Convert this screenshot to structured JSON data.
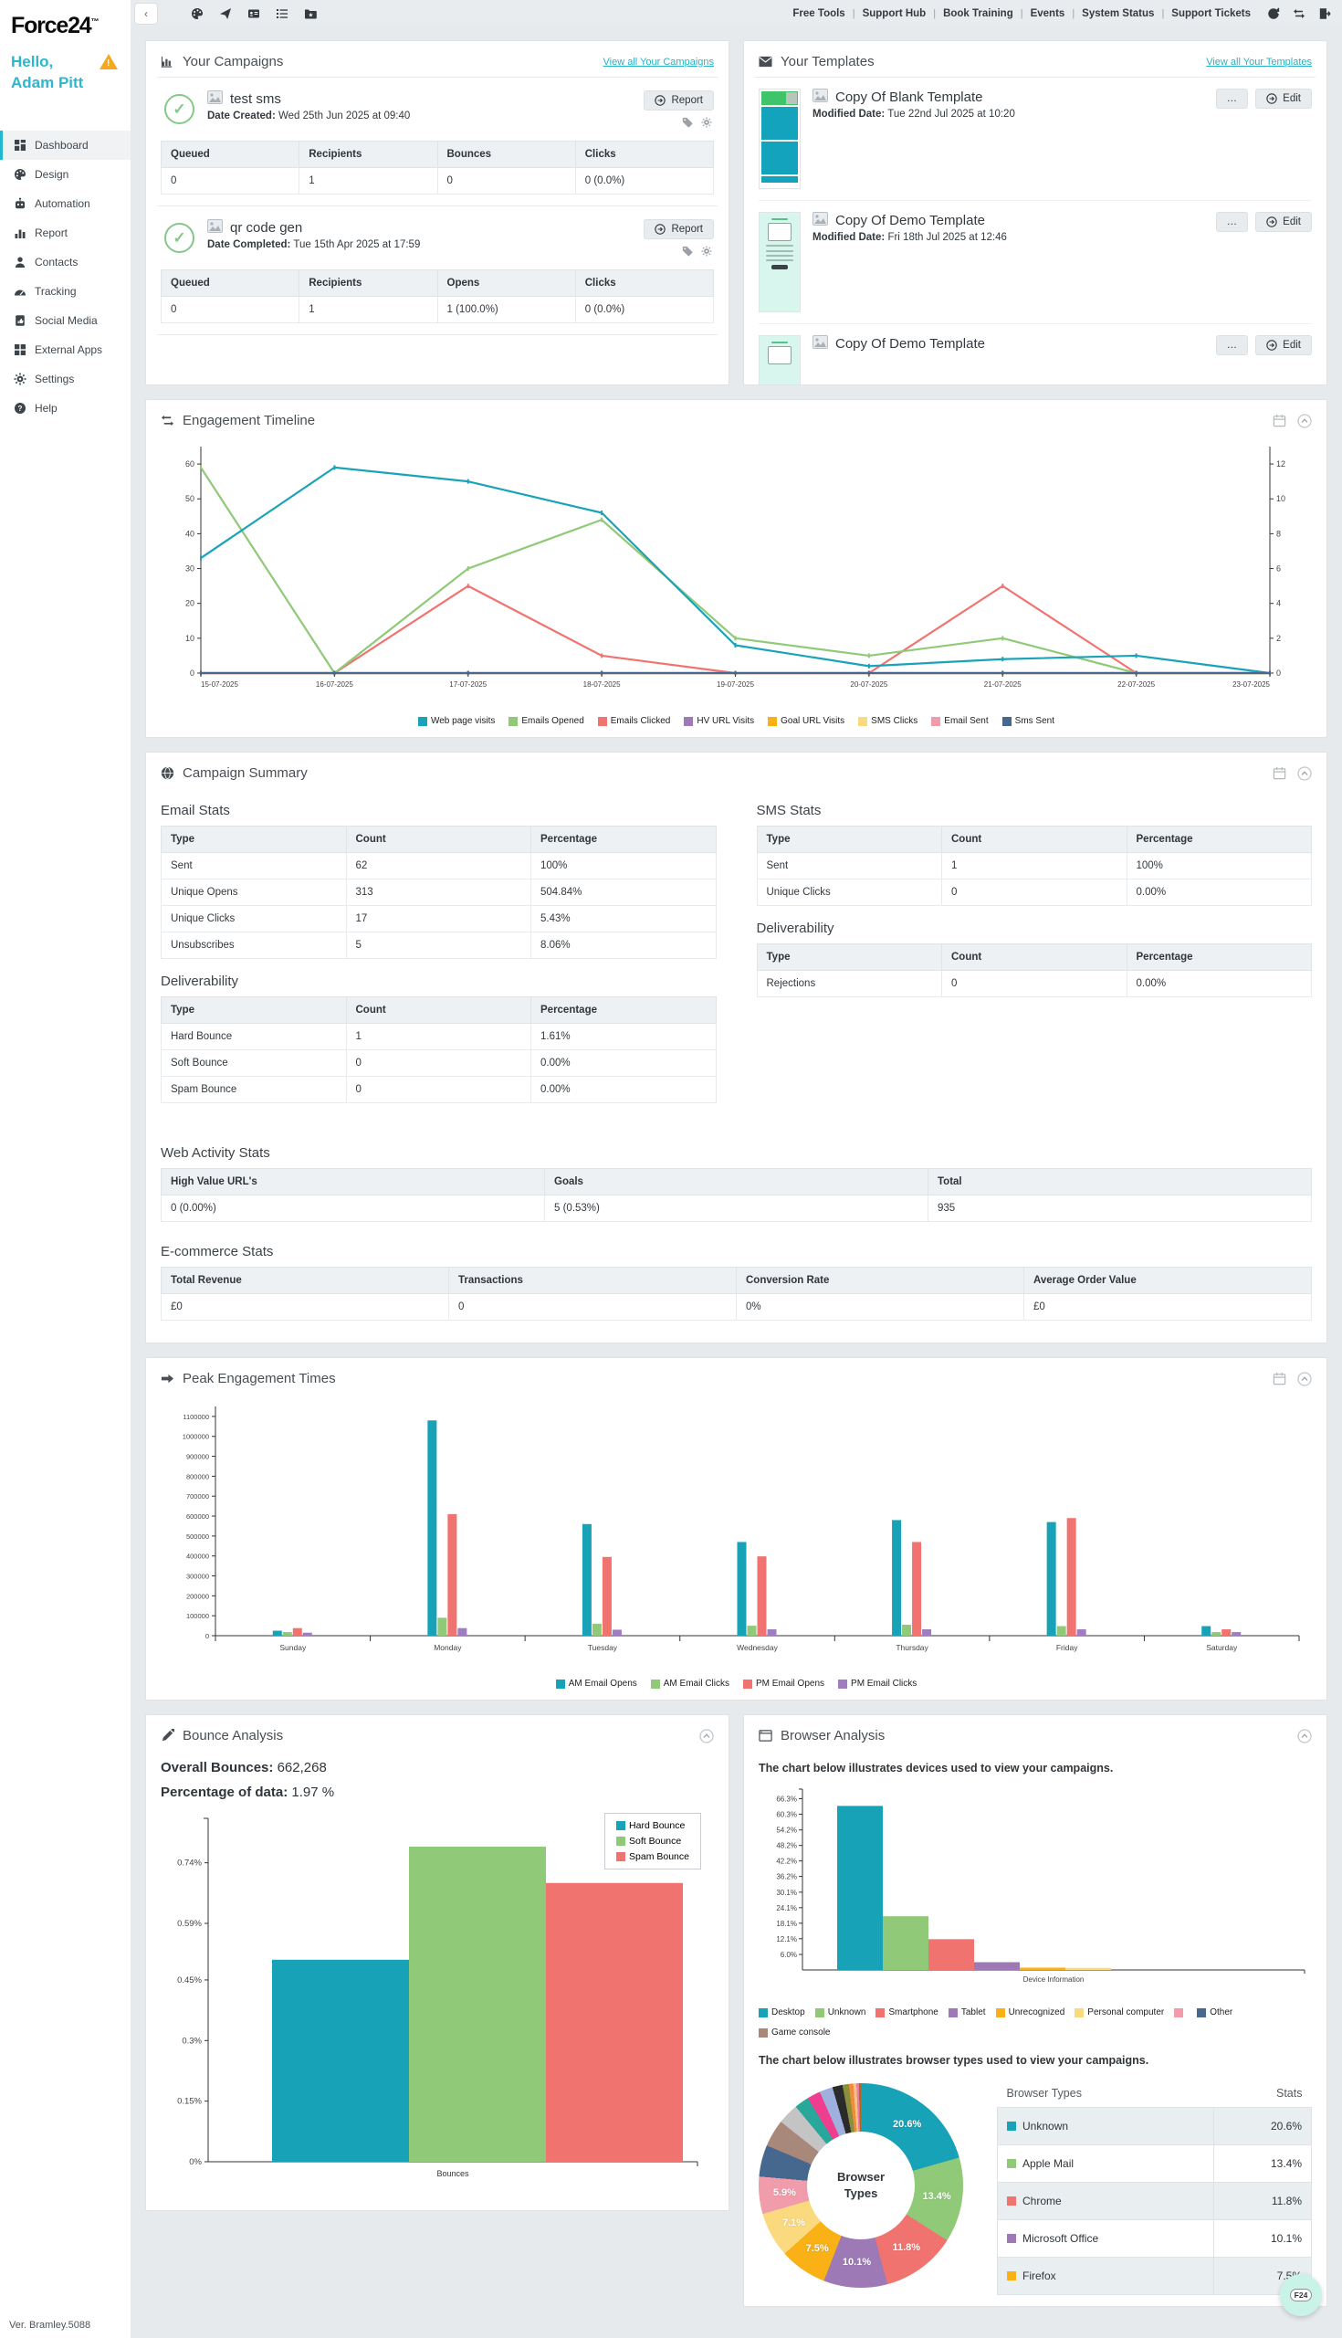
{
  "topbar": {
    "collapse_label": "‹",
    "tool_icons": [
      "palette-icon",
      "send-icon",
      "contact-card-icon",
      "list-icon",
      "folder-star-icon"
    ],
    "links": [
      "Free Tools",
      "Support Hub",
      "Book Training",
      "Events",
      "System Status",
      "Support Tickets"
    ],
    "action_icons": [
      "refresh-icon",
      "switch-icon",
      "logout-icon"
    ]
  },
  "sidebar": {
    "logo": "Force24",
    "logo_tm": "™",
    "greeting_line1": "Hello,",
    "greeting_line2": "Adam Pitt",
    "warning_icon": "warning-triangle-icon",
    "items": [
      {
        "label": "Dashboard",
        "icon": "dashboard-icon",
        "active": true
      },
      {
        "label": "Design",
        "icon": "design-icon",
        "active": false
      },
      {
        "label": "Automation",
        "icon": "automation-icon",
        "active": false
      },
      {
        "label": "Report",
        "icon": "report-icon",
        "active": false
      },
      {
        "label": "Contacts",
        "icon": "contacts-icon",
        "active": false
      },
      {
        "label": "Tracking",
        "icon": "tracking-icon",
        "active": false
      },
      {
        "label": "Social Media",
        "icon": "social-media-icon",
        "active": false
      },
      {
        "label": "External Apps",
        "icon": "external-apps-icon",
        "active": false
      },
      {
        "label": "Settings",
        "icon": "settings-icon",
        "active": false
      },
      {
        "label": "Help",
        "icon": "help-icon",
        "active": false
      }
    ],
    "version": "Ver. Bramley.5088"
  },
  "campaigns_panel": {
    "title": "Your Campaigns",
    "view_all": "View all Your Campaigns",
    "report_label": "Report",
    "items": [
      {
        "name": "test sms",
        "status_icon": "success-check-icon",
        "date_label": "Date Created:",
        "date": "Wed 25th Jun 2025 at 09:40",
        "table": {
          "columns": [
            "Queued",
            "Recipients",
            "Bounces",
            "Clicks"
          ],
          "rows": [
            [
              "0",
              "1",
              "0",
              "0 (0.0%)"
            ]
          ]
        }
      },
      {
        "name": "qr code gen",
        "status_icon": "success-check-icon",
        "date_label": "Date Completed:",
        "date": "Tue 15th Apr 2025 at 17:59",
        "table": {
          "columns": [
            "Queued",
            "Recipients",
            "Opens",
            "Clicks"
          ],
          "rows": [
            [
              "0",
              "1",
              "1 (100.0%)",
              "0 (0.0%)"
            ]
          ]
        }
      }
    ]
  },
  "templates_panel": {
    "title": "Your Templates",
    "view_all": "View all Your Templates",
    "edit_label": "Edit",
    "more_label": "…",
    "items": [
      {
        "name": "Copy Of Blank Template",
        "date_label": "Modified Date:",
        "date": "Tue 22nd Jul 2025 at 10:20"
      },
      {
        "name": "Copy Of Demo Template",
        "date_label": "Modified Date:",
        "date": "Fri 18th Jul 2025 at 12:46"
      },
      {
        "name": "Copy Of Demo Template",
        "date_label": "",
        "date": ""
      }
    ]
  },
  "engagement_panel": {
    "title": "Engagement Timeline"
  },
  "summary_panel": {
    "title": "Campaign Summary",
    "email_heading": "Email Stats",
    "email_stats": {
      "columns": [
        "Type",
        "Count",
        "Percentage"
      ],
      "rows": [
        [
          "Sent",
          "62",
          "100%"
        ],
        [
          "Unique Opens",
          "313",
          "504.84%"
        ],
        [
          "Unique Clicks",
          "17",
          "5.43%"
        ],
        [
          "Unsubscribes",
          "5",
          "8.06%"
        ]
      ]
    },
    "email_deliverability_heading": "Deliverability",
    "email_deliverability": {
      "columns": [
        "Type",
        "Count",
        "Percentage"
      ],
      "rows": [
        [
          "Hard Bounce",
          "1",
          "1.61%"
        ],
        [
          "Soft Bounce",
          "0",
          "0.00%"
        ],
        [
          "Spam Bounce",
          "0",
          "0.00%"
        ]
      ]
    },
    "sms_heading": "SMS Stats",
    "sms_stats": {
      "columns": [
        "Type",
        "Count",
        "Percentage"
      ],
      "rows": [
        [
          "Sent",
          "1",
          "100%"
        ],
        [
          "Unique Clicks",
          "0",
          "0.00%"
        ]
      ]
    },
    "sms_deliverability_heading": "Deliverability",
    "sms_deliverability": {
      "columns": [
        "Type",
        "Count",
        "Percentage"
      ],
      "rows": [
        [
          "Rejections",
          "0",
          "0.00%"
        ]
      ]
    },
    "web_heading": "Web Activity Stats",
    "web_activity": {
      "columns": [
        "High Value URL's",
        "Goals",
        "Total"
      ],
      "rows": [
        [
          "0 (0.00%)",
          "5 (0.53%)",
          "935"
        ]
      ]
    },
    "ecommerce_heading": "E-commerce Stats",
    "ecommerce": {
      "columns": [
        "Total Revenue",
        "Transactions",
        "Conversion Rate",
        "Average Order Value"
      ],
      "rows": [
        [
          "£0",
          "0",
          "0%",
          "£0"
        ]
      ]
    }
  },
  "peak_panel": {
    "title": "Peak Engagement Times"
  },
  "bounce_panel": {
    "title": "Bounce Analysis",
    "overall_label": "Overall Bounces:",
    "overall_value": "662,268",
    "pct_label": "Percentage of data:",
    "pct_value": "1.97 %"
  },
  "browser_panel": {
    "title": "Browser Analysis",
    "devices_caption": "The chart below illustrates devices used to view your campaigns.",
    "browsers_caption": "The chart below illustrates browser types used to view your campaigns.",
    "table": {
      "columns": [
        "Browser Types",
        "Stats"
      ],
      "rows": [
        [
          "Unknown",
          "20.6%"
        ],
        [
          "Apple Mail",
          "13.4%"
        ],
        [
          "Chrome",
          "11.8%"
        ],
        [
          "Microsoft Office",
          "10.1%"
        ],
        [
          "Firefox",
          "7.5%"
        ]
      ],
      "row_colors": [
        "#17a2b8",
        "#90c978",
        "#f1736f",
        "#9d7ab5",
        "#f9b115"
      ]
    }
  },
  "fab": {
    "label": "F24"
  },
  "chart_data": [
    {
      "id": "engagement_timeline",
      "type": "line",
      "title": "Engagement Timeline",
      "x": [
        "15-07-2025",
        "16-07-2025",
        "17-07-2025",
        "18-07-2025",
        "19-07-2025",
        "20-07-2025",
        "21-07-2025",
        "22-07-2025",
        "23-07-2025"
      ],
      "left_ticks": [
        0,
        10,
        20,
        30,
        40,
        50,
        60
      ],
      "right_ticks": [
        0,
        2,
        4,
        6,
        8,
        10,
        12
      ],
      "left_max": 65,
      "right_max": 13,
      "grid": false,
      "legend_position": "bottom",
      "series": [
        {
          "name": "Web page visits",
          "color": "#1aa3b8",
          "values": [
            33,
            59,
            55,
            46,
            8,
            2,
            4,
            5,
            0
          ]
        },
        {
          "name": "Emails Opened",
          "color": "#90c978",
          "values": [
            59,
            0,
            30,
            44,
            10,
            5,
            10,
            0,
            0
          ]
        },
        {
          "name": "Emails Clicked",
          "color": "#f1736f",
          "values": [
            0,
            0,
            25,
            5,
            0,
            0,
            25,
            0,
            0
          ]
        },
        {
          "name": "HV URL Visits",
          "color": "#9d7ab5",
          "values": [
            0,
            0,
            0,
            0,
            0,
            0,
            0,
            0,
            0
          ]
        },
        {
          "name": "Goal URL Visits",
          "color": "#f9b115",
          "values": [
            0,
            0,
            0,
            0,
            0,
            0,
            0,
            0,
            0
          ]
        },
        {
          "name": "SMS Clicks",
          "color": "#fad97f",
          "values": [
            0,
            0,
            0,
            0,
            0,
            0,
            0,
            0,
            0
          ]
        },
        {
          "name": "Email Sent",
          "color": "#f19cab",
          "values": [
            0,
            0,
            0,
            0,
            0,
            0,
            0,
            0,
            0
          ]
        },
        {
          "name": "Sms Sent",
          "color": "#46688e",
          "values": [
            0,
            0,
            0,
            0,
            0,
            0,
            0,
            0,
            0
          ]
        }
      ]
    },
    {
      "id": "peak_engagement",
      "type": "bar",
      "title": "Peak Engagement Times",
      "categories": [
        "Sunday",
        "Monday",
        "Tuesday",
        "Wednesday",
        "Thursday",
        "Friday",
        "Saturday"
      ],
      "ticks": [
        0,
        100000,
        200000,
        300000,
        400000,
        500000,
        600000,
        700000,
        800000,
        900000,
        1000000,
        1100000
      ],
      "max": 1150000,
      "legend_position": "bottom",
      "series": [
        {
          "name": "AM Email Opens",
          "color": "#17a2b8",
          "values": [
            25000,
            1080000,
            560000,
            470000,
            580000,
            570000,
            48000
          ]
        },
        {
          "name": "AM Email Clicks",
          "color": "#90c978",
          "values": [
            18000,
            90000,
            60000,
            50000,
            55000,
            48000,
            18000
          ]
        },
        {
          "name": "PM Email Opens",
          "color": "#f1736f",
          "values": [
            38000,
            610000,
            395000,
            398000,
            470000,
            590000,
            32000
          ]
        },
        {
          "name": "PM Email Clicks",
          "color": "#a07cc0",
          "values": [
            15000,
            38000,
            30000,
            32000,
            32000,
            32000,
            18000
          ]
        }
      ]
    },
    {
      "id": "bounce_analysis",
      "type": "bar",
      "title": "Bounce Analysis",
      "xlabel": "Bounces",
      "ticks": [
        {
          "v": 0,
          "label": "0%"
        },
        {
          "v": 0.15,
          "label": "0.15%"
        },
        {
          "v": 0.3,
          "label": "0.3%"
        },
        {
          "v": 0.45,
          "label": "0.45%"
        },
        {
          "v": 0.59,
          "label": "0.59%"
        },
        {
          "v": 0.74,
          "label": "0.74%"
        }
      ],
      "max": 0.85,
      "legend_position": "top-right",
      "series": [
        {
          "name": "Hard Bounce",
          "color": "#17a2b8",
          "values": [
            0.5
          ]
        },
        {
          "name": "Soft Bounce",
          "color": "#90c978",
          "values": [
            0.78
          ]
        },
        {
          "name": "Spam Bounce",
          "color": "#f1736f",
          "values": [
            0.69
          ]
        }
      ]
    },
    {
      "id": "device_information",
      "type": "bar",
      "title": "Devices used to view campaigns",
      "xlabel": "Device Information",
      "ticks": [
        {
          "v": 6.0,
          "label": "6.0%"
        },
        {
          "v": 12.1,
          "label": "12.1%"
        },
        {
          "v": 18.1,
          "label": "18.1%"
        },
        {
          "v": 24.1,
          "label": "24.1%"
        },
        {
          "v": 30.1,
          "label": "30.1%"
        },
        {
          "v": 36.2,
          "label": "36.2%"
        },
        {
          "v": 42.2,
          "label": "42.2%"
        },
        {
          "v": 48.2,
          "label": "48.2%"
        },
        {
          "v": 54.2,
          "label": "54.2%"
        },
        {
          "v": 60.3,
          "label": "60.3%"
        },
        {
          "v": 66.3,
          "label": "66.3%"
        }
      ],
      "max": 70,
      "legend_position": "bottom",
      "series": [
        {
          "name": "Desktop",
          "color": "#17a2b8",
          "value": 63.5
        },
        {
          "name": "Unknown",
          "color": "#90c978",
          "value": 20.8
        },
        {
          "name": "Smartphone",
          "color": "#f1736f",
          "value": 11.9
        },
        {
          "name": "Tablet",
          "color": "#9d7ab5",
          "value": 3.0
        },
        {
          "name": "Unrecognized",
          "color": "#f9b115",
          "value": 0.9
        },
        {
          "name": "Personal computer",
          "color": "#fad97f",
          "value": 0.8
        },
        {
          "name": "",
          "color": "#f19cab",
          "value": 0.1
        },
        {
          "name": "Other",
          "color": "#46688e",
          "value": 0.1
        },
        {
          "name": "Game console",
          "color": "#a8887a",
          "value": 0.1
        }
      ]
    },
    {
      "id": "browser_types",
      "type": "pie",
      "title": "Browser Types",
      "center_label": "Browser Types",
      "slices": [
        {
          "name": "Unknown",
          "value": 20.6,
          "color": "#17a2b8",
          "label": "20.6%"
        },
        {
          "name": "Apple Mail",
          "value": 13.4,
          "color": "#90c978",
          "label": "13.4%"
        },
        {
          "name": "Chrome",
          "value": 11.8,
          "color": "#f1736f",
          "label": "11.8%"
        },
        {
          "name": "Microsoft Office",
          "value": 10.1,
          "color": "#9d7ab5",
          "label": "10.1%"
        },
        {
          "name": "Firefox",
          "value": 7.5,
          "color": "#f9b115",
          "label": "7.5%"
        },
        {
          "name": "",
          "value": 7.1,
          "color": "#fad97f",
          "label": "7.1%"
        },
        {
          "name": "",
          "value": 5.9,
          "color": "#f19cab",
          "label": "5.9%"
        },
        {
          "name": "",
          "value": 5.0,
          "color": "#46688e",
          "label": ""
        },
        {
          "name": "",
          "value": 4.3,
          "color": "#a8887a",
          "label": ""
        },
        {
          "name": "",
          "value": 3.3,
          "color": "#c4c4c4",
          "label": ""
        },
        {
          "name": "",
          "value": 2.3,
          "color": "#2aa79b",
          "label": ""
        },
        {
          "name": "",
          "value": 2.1,
          "color": "#ef3e8f",
          "label": ""
        },
        {
          "name": "",
          "value": 2.1,
          "color": "#9fb0de",
          "label": ""
        },
        {
          "name": "",
          "value": 1.6,
          "color": "#2b2b2b",
          "label": ""
        },
        {
          "name": "",
          "value": 1.0,
          "color": "#8a8f3c",
          "label": ""
        },
        {
          "name": "",
          "value": 0.7,
          "color": "#f08c34",
          "label": ""
        },
        {
          "name": "",
          "value": 0.5,
          "color": "#f6c28b",
          "label": ""
        },
        {
          "name": "",
          "value": 0.4,
          "color": "#e87da1",
          "label": ""
        },
        {
          "name": "",
          "value": 0.3,
          "color": "#b5651d",
          "label": ""
        }
      ]
    }
  ]
}
